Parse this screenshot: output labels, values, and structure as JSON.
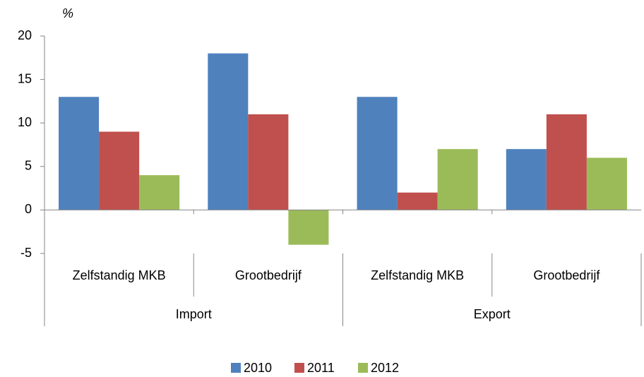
{
  "chart_data": {
    "type": "bar",
    "y_label": "%",
    "category_groups": [
      {
        "name": "Import",
        "categories": [
          "Zelfstandig MKB",
          "Grootbedrijf"
        ]
      },
      {
        "name": "Export",
        "categories": [
          "Zelfstandig MKB",
          "Grootbedrijf"
        ]
      }
    ],
    "series": [
      {
        "name": "2010",
        "color": "#4f81bd",
        "values": [
          13,
          18,
          13,
          7
        ]
      },
      {
        "name": "2011",
        "color": "#c0504d",
        "values": [
          9,
          11,
          2,
          11
        ]
      },
      {
        "name": "2012",
        "color": "#9bbb59",
        "values": [
          4,
          -4,
          7,
          6
        ]
      }
    ],
    "ylim": [
      -5,
      20
    ],
    "yticks": [
      -5,
      0,
      5,
      10,
      15,
      20
    ],
    "grid": false,
    "legend": "bottom"
  }
}
